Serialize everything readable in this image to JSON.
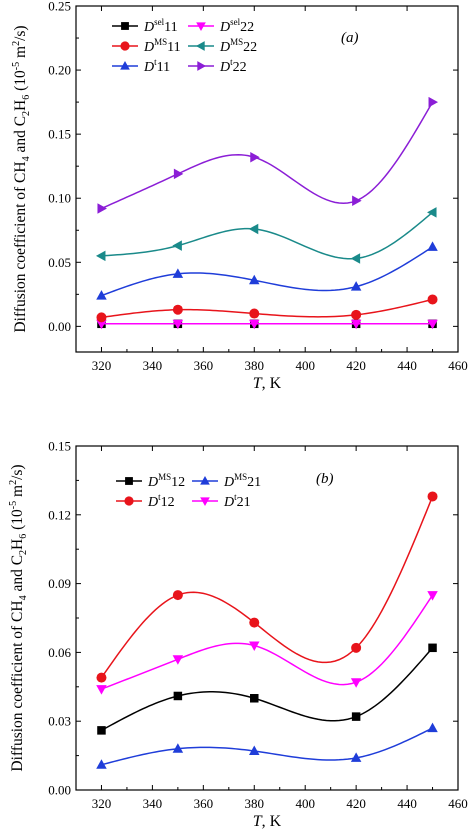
{
  "chart_data": [
    {
      "type": "line",
      "panel_label": "(a)",
      "xlabel_var": "T",
      "xlabel_unit": ", K",
      "ylabel_parts": [
        "Diffusion coefficient of CH",
        "4",
        " and C",
        "2",
        "H",
        "6",
        " (10",
        "-5",
        " m",
        "2",
        "/s)"
      ],
      "xlim": [
        310,
        460
      ],
      "ylim": [
        -0.02,
        0.25
      ],
      "xticks": [
        320,
        340,
        360,
        380,
        400,
        420,
        440,
        460
      ],
      "xtick_labels": [
        "320",
        "340",
        "360",
        "380",
        "400",
        "420",
        "440",
        "460"
      ],
      "yticks": [
        0.0,
        0.05,
        0.1,
        0.15,
        0.2,
        0.25
      ],
      "ytick_labels": [
        "0.00",
        "0.05",
        "0.10",
        "0.15",
        "0.20",
        "0.25"
      ],
      "legend_position": "top-left",
      "x": [
        320,
        350,
        380,
        420,
        450
      ],
      "series": [
        {
          "name": "D^sel11",
          "name_main": "D",
          "name_sup": "sel",
          "name_tail": "11",
          "color": "#000000",
          "marker": "square",
          "values": [
            0.002,
            0.002,
            0.002,
            0.002,
            0.002
          ]
        },
        {
          "name": "D^sel22",
          "name_main": "D",
          "name_sup": "sel",
          "name_tail": "22",
          "color": "#ff00ff",
          "marker": "triangle-down",
          "values": [
            0.002,
            0.002,
            0.002,
            0.002,
            0.002
          ]
        },
        {
          "name": "D^MS11",
          "name_main": "D",
          "name_sup": "MS",
          "name_tail": "11",
          "color": "#e8141b",
          "marker": "circle",
          "values": [
            0.007,
            0.013,
            0.01,
            0.009,
            0.021
          ]
        },
        {
          "name": "D^MS22",
          "name_main": "D",
          "name_sup": "MS",
          "name_tail": "22",
          "color": "#1a8a8a",
          "marker": "triangle-left",
          "values": [
            0.055,
            0.063,
            0.076,
            0.053,
            0.089
          ]
        },
        {
          "name": "D^t11",
          "name_main": "D",
          "name_sup": "t",
          "name_tail": "11",
          "color": "#1f3dd9",
          "marker": "triangle-up",
          "values": [
            0.024,
            0.041,
            0.036,
            0.031,
            0.062
          ]
        },
        {
          "name": "D^t22",
          "name_main": "D",
          "name_sup": "t",
          "name_tail": "22",
          "color": "#8b1ed6",
          "marker": "triangle-right",
          "values": [
            0.092,
            0.119,
            0.132,
            0.098,
            0.175
          ]
        }
      ]
    },
    {
      "type": "line",
      "panel_label": "(b)",
      "xlabel_var": "T",
      "xlabel_unit": ", K",
      "ylabel_parts": [
        "Diffusion coefficient of CH",
        "4",
        " and C",
        "2",
        "H",
        "6",
        " (10",
        "-5",
        " m",
        "2",
        "/s)"
      ],
      "xlim": [
        310,
        460
      ],
      "ylim": [
        0.0,
        0.15
      ],
      "xticks": [
        320,
        340,
        360,
        380,
        400,
        420,
        440,
        460
      ],
      "xtick_labels": [
        "320",
        "340",
        "360",
        "380",
        "400",
        "420",
        "440",
        "460"
      ],
      "yticks": [
        0.0,
        0.03,
        0.06,
        0.09,
        0.12,
        0.15
      ],
      "ytick_labels": [
        "0.00",
        "0.03",
        "0.06",
        "0.09",
        "0.12",
        "0.15"
      ],
      "legend_position": "top-left",
      "x": [
        320,
        350,
        380,
        420,
        450
      ],
      "series": [
        {
          "name": "D^MS12",
          "name_main": "D",
          "name_sup": "MS",
          "name_tail": "12",
          "color": "#000000",
          "marker": "square",
          "values": [
            0.026,
            0.041,
            0.04,
            0.032,
            0.062
          ]
        },
        {
          "name": "D^MS21",
          "name_main": "D",
          "name_sup": "MS",
          "name_tail": "21",
          "color": "#1f3dd9",
          "marker": "triangle-up",
          "values": [
            0.011,
            0.018,
            0.017,
            0.014,
            0.027
          ]
        },
        {
          "name": "D^t12",
          "name_main": "D",
          "name_sup": "t",
          "name_tail": "12",
          "color": "#e8141b",
          "marker": "circle",
          "values": [
            0.049,
            0.085,
            0.073,
            0.062,
            0.128
          ]
        },
        {
          "name": "D^t21",
          "name_main": "D",
          "name_sup": "t",
          "name_tail": "21",
          "color": "#ff00ff",
          "marker": "triangle-down",
          "values": [
            0.044,
            0.057,
            0.063,
            0.047,
            0.085
          ]
        }
      ]
    }
  ]
}
